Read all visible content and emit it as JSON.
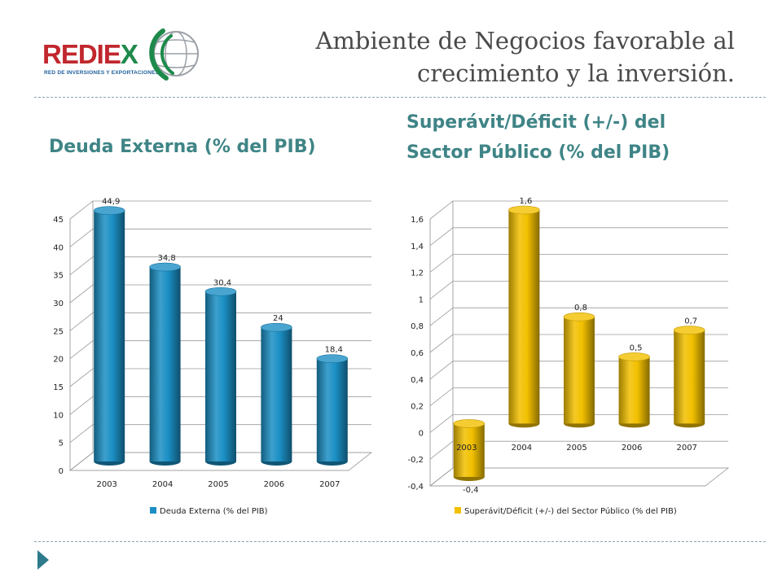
{
  "logo": {
    "brand_main": "REDIE",
    "brand_accent": "X",
    "subtitle": "RED DE INVERSIONES Y EXPORTACIONES"
  },
  "title": {
    "line1": "Ambiente de Negocios favorable al",
    "line2": "crecimiento y la inversión."
  },
  "subtitles": {
    "left": "Deuda Externa (% del PIB)",
    "right_line1": "Superávit/Déficit (+/-) del",
    "right_line2": "Sector Público (% del PIB)"
  },
  "colors": {
    "title": "#4a4a4a",
    "subtitle": "#3f8486",
    "blue_bar": "#1b8fc4",
    "yellow_bar": "#f2c000",
    "dash": "#8aa3ad"
  },
  "chart_data": [
    {
      "type": "bar",
      "title": "Deuda Externa (% del PIB)",
      "categories": [
        "2003",
        "2004",
        "2005",
        "2006",
        "2007"
      ],
      "series": [
        {
          "name": "Deuda Externa (% del PIB)",
          "values": [
            44.9,
            34.8,
            30.4,
            24,
            18.4
          ]
        }
      ],
      "data_labels": [
        "44,9",
        "34,8",
        "30,4",
        "24",
        "18,4"
      ],
      "y_ticks": [
        0,
        5,
        10,
        15,
        20,
        25,
        30,
        35,
        40,
        45
      ],
      "y_tick_labels": [
        "0",
        "5",
        "10",
        "15",
        "20",
        "25",
        "30",
        "35",
        "40",
        "45"
      ],
      "ylim": [
        0,
        45
      ],
      "color": "#1b8fc4",
      "legend": "bottom",
      "grid": true
    },
    {
      "type": "bar",
      "title": "Superávit/Déficit (+/-) del Sector Público (% del PIB)",
      "categories": [
        "2003",
        "2004",
        "2005",
        "2006",
        "2007"
      ],
      "series": [
        {
          "name": "Superávit/Déficit (+/-) del Sector Público (% del PIB)",
          "values": [
            -0.4,
            1.6,
            0.8,
            0.5,
            0.7
          ]
        }
      ],
      "data_labels": [
        "-0,4",
        "1,6",
        "0,8",
        "0,5",
        "0,7"
      ],
      "y_ticks": [
        -0.4,
        -0.2,
        0,
        0.2,
        0.4,
        0.6,
        0.8,
        1,
        1.2,
        1.4,
        1.6
      ],
      "y_tick_labels": [
        "-0,4",
        "-0,2",
        "0",
        "0,2",
        "0,4",
        "0,6",
        "0,8",
        "1",
        "1,2",
        "1,4",
        "1,6"
      ],
      "ylim": [
        -0.4,
        1.6
      ],
      "color": "#f2c000",
      "legend": "bottom",
      "grid": true
    }
  ]
}
